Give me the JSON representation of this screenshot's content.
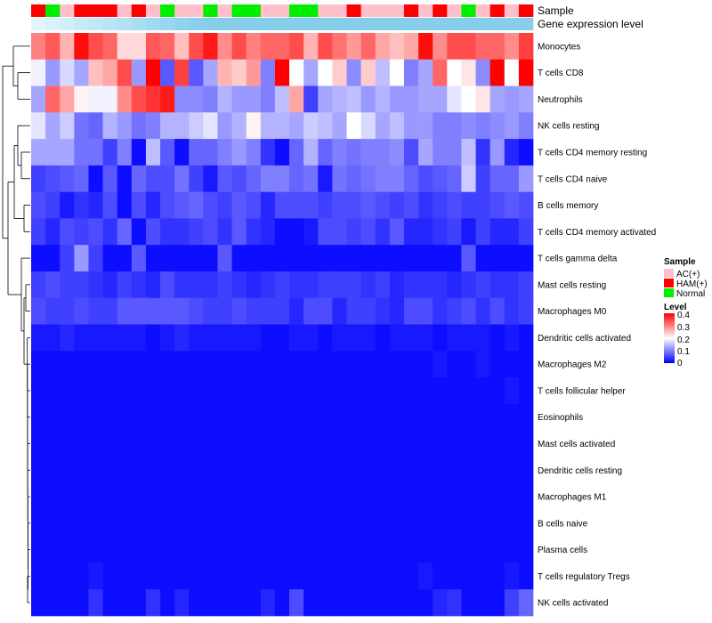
{
  "chart_data": {
    "type": "heatmap",
    "title": "",
    "annotation_tracks": [
      {
        "name": "Sample"
      },
      {
        "name": "Gene expression level"
      }
    ],
    "row_labels": [
      "Monocytes",
      "T cells CD8",
      "Neutrophils",
      "NK cells resting",
      "T cells CD4 memory resting",
      "T cells CD4 naive",
      "B cells memory",
      "T cells CD4 memory activated",
      "T cells gamma delta",
      "Mast cells resting",
      "Macrophages M0",
      "Dendritic cells activated",
      "Macrophages M2",
      "T cells follicular helper",
      "Eosinophils",
      "Mast cells activated",
      "Dendritic cells resting",
      "Macrophages M1",
      "B cells naive",
      "Plasma cells",
      "T cells regulatory  Tregs",
      "NK cells activated"
    ],
    "sample_groups": [
      "HAM(+)",
      "Normal",
      "AC(+)",
      "HAM(+)",
      "HAM(+)",
      "HAM(+)",
      "AC(+)",
      "HAM(+)",
      "AC(+)",
      "Normal",
      "AC(+)",
      "AC(+)",
      "Normal",
      "AC(+)",
      "Normal",
      "Normal",
      "AC(+)",
      "AC(+)",
      "Normal",
      "Normal",
      "AC(+)",
      "AC(+)",
      "HAM(+)",
      "AC(+)",
      "AC(+)",
      "AC(+)",
      "HAM(+)",
      "AC(+)",
      "HAM(+)",
      "AC(+)",
      "Normal",
      "AC(+)",
      "HAM(+)",
      "AC(+)",
      "HAM(+)"
    ],
    "values": [
      [
        0.3,
        0.33,
        0.26,
        0.39,
        0.34,
        0.32,
        0.23,
        0.23,
        0.33,
        0.32,
        0.25,
        0.34,
        0.38,
        0.29,
        0.34,
        0.3,
        0.32,
        0.32,
        0.34,
        0.26,
        0.34,
        0.31,
        0.28,
        0.32,
        0.27,
        0.25,
        0.27,
        0.39,
        0.29,
        0.34,
        0.34,
        0.32,
        0.32,
        0.29,
        0.35
      ],
      [
        0.19,
        0.12,
        0.17,
        0.13,
        0.25,
        0.27,
        0.34,
        0.12,
        0.4,
        0.07,
        0.35,
        0.07,
        0.13,
        0.26,
        0.24,
        0.28,
        0.1,
        0.4,
        0.2,
        0.13,
        0.2,
        0.24,
        0.11,
        0.24,
        0.15,
        0.2,
        0.1,
        0.13,
        0.32,
        0.2,
        0.22,
        0.11,
        0.4,
        0.2,
        0.4
      ],
      [
        0.13,
        0.32,
        0.27,
        0.21,
        0.19,
        0.19,
        0.29,
        0.34,
        0.36,
        0.38,
        0.11,
        0.11,
        0.1,
        0.14,
        0.12,
        0.12,
        0.1,
        0.15,
        0.27,
        0.05,
        0.13,
        0.14,
        0.15,
        0.12,
        0.14,
        0.12,
        0.12,
        0.13,
        0.13,
        0.18,
        0.2,
        0.22,
        0.13,
        0.12,
        0.13
      ],
      [
        0.18,
        0.13,
        0.16,
        0.09,
        0.08,
        0.14,
        0.12,
        0.09,
        0.1,
        0.14,
        0.14,
        0.16,
        0.18,
        0.12,
        0.14,
        0.21,
        0.14,
        0.14,
        0.13,
        0.16,
        0.15,
        0.13,
        0.2,
        0.17,
        0.13,
        0.15,
        0.12,
        0.12,
        0.1,
        0.1,
        0.11,
        0.1,
        0.11,
        0.12,
        0.1
      ],
      [
        0.13,
        0.13,
        0.13,
        0.09,
        0.09,
        0.05,
        0.1,
        0.01,
        0.15,
        0.07,
        0.01,
        0.08,
        0.08,
        0.1,
        0.12,
        0.1,
        0.04,
        0.01,
        0.08,
        0.14,
        0.08,
        0.1,
        0.09,
        0.1,
        0.1,
        0.11,
        0.06,
        0.13,
        0.1,
        0.1,
        0.15,
        0.04,
        0.12,
        0.03,
        0.01
      ],
      [
        0.05,
        0.06,
        0.07,
        0.08,
        0.01,
        0.07,
        0.01,
        0.08,
        0.06,
        0.06,
        0.09,
        0.05,
        0.02,
        0.07,
        0.06,
        0.08,
        0.1,
        0.1,
        0.08,
        0.09,
        0.02,
        0.09,
        0.08,
        0.09,
        0.1,
        0.1,
        0.08,
        0.06,
        0.07,
        0.08,
        0.16,
        0.05,
        0.08,
        0.08,
        0.12
      ],
      [
        0.06,
        0.05,
        0.02,
        0.04,
        0.03,
        0.06,
        0.01,
        0.06,
        0.03,
        0.06,
        0.07,
        0.08,
        0.06,
        0.05,
        0.07,
        0.06,
        0.03,
        0.06,
        0.06,
        0.06,
        0.05,
        0.06,
        0.06,
        0.07,
        0.06,
        0.05,
        0.06,
        0.04,
        0.05,
        0.06,
        0.05,
        0.05,
        0.06,
        0.07,
        0.06
      ],
      [
        0.05,
        0.03,
        0.06,
        0.05,
        0.06,
        0.04,
        0.08,
        0.01,
        0.06,
        0.04,
        0.04,
        0.05,
        0.06,
        0.04,
        0.07,
        0.04,
        0.03,
        0.01,
        0.01,
        0.02,
        0.06,
        0.06,
        0.05,
        0.06,
        0.04,
        0.07,
        0.03,
        0.03,
        0.04,
        0.05,
        0.02,
        0.05,
        0.03,
        0.03,
        0.05
      ],
      [
        0.01,
        0.01,
        0.05,
        0.12,
        0.05,
        0.01,
        0.01,
        0.07,
        0.01,
        0.01,
        0.01,
        0.01,
        0.01,
        0.07,
        0.01,
        0.01,
        0.01,
        0.01,
        0.01,
        0.01,
        0.01,
        0.01,
        0.01,
        0.01,
        0.01,
        0.01,
        0.01,
        0.01,
        0.01,
        0.01,
        0.07,
        0.01,
        0.01,
        0.01,
        0.01
      ],
      [
        0.05,
        0.06,
        0.05,
        0.05,
        0.04,
        0.03,
        0.05,
        0.04,
        0.03,
        0.06,
        0.04,
        0.04,
        0.04,
        0.05,
        0.04,
        0.03,
        0.04,
        0.05,
        0.04,
        0.04,
        0.05,
        0.05,
        0.05,
        0.04,
        0.05,
        0.03,
        0.04,
        0.04,
        0.04,
        0.03,
        0.04,
        0.05,
        0.04,
        0.04,
        0.05
      ],
      [
        0.06,
        0.05,
        0.05,
        0.06,
        0.05,
        0.05,
        0.07,
        0.07,
        0.07,
        0.07,
        0.07,
        0.06,
        0.05,
        0.05,
        0.06,
        0.05,
        0.05,
        0.05,
        0.03,
        0.06,
        0.06,
        0.03,
        0.05,
        0.05,
        0.04,
        0.03,
        0.06,
        0.06,
        0.04,
        0.05,
        0.06,
        0.04,
        0.06,
        0.04,
        0.05
      ],
      [
        0.02,
        0.02,
        0.03,
        0.02,
        0.02,
        0.02,
        0.02,
        0.02,
        0.01,
        0.02,
        0.03,
        0.02,
        0.02,
        0.02,
        0.02,
        0.02,
        0.01,
        0.01,
        0.02,
        0.02,
        0.01,
        0.02,
        0.02,
        0.02,
        0.01,
        0.02,
        0.02,
        0.02,
        0.01,
        0.02,
        0.02,
        0.02,
        0.01,
        0.02,
        0.01
      ],
      [
        0.01,
        0.01,
        0.01,
        0.01,
        0.01,
        0.01,
        0.01,
        0.01,
        0.01,
        0.01,
        0.01,
        0.01,
        0.01,
        0.01,
        0.01,
        0.01,
        0.01,
        0.01,
        0.01,
        0.01,
        0.01,
        0.01,
        0.01,
        0.01,
        0.01,
        0.01,
        0.01,
        0.01,
        0.02,
        0.01,
        0.01,
        0.02,
        0.01,
        0.01,
        0.01
      ],
      [
        0.01,
        0.01,
        0.01,
        0.01,
        0.01,
        0.01,
        0.01,
        0.01,
        0.01,
        0.01,
        0.01,
        0.01,
        0.01,
        0.01,
        0.01,
        0.01,
        0.01,
        0.01,
        0.01,
        0.01,
        0.01,
        0.01,
        0.01,
        0.01,
        0.01,
        0.01,
        0.01,
        0.01,
        0.01,
        0.01,
        0.01,
        0.01,
        0.01,
        0.02,
        0.01
      ],
      [
        0.01,
        0.01,
        0.01,
        0.01,
        0.01,
        0.01,
        0.01,
        0.01,
        0.01,
        0.01,
        0.01,
        0.01,
        0.01,
        0.01,
        0.01,
        0.01,
        0.01,
        0.01,
        0.01,
        0.01,
        0.01,
        0.01,
        0.01,
        0.01,
        0.01,
        0.01,
        0.01,
        0.01,
        0.01,
        0.01,
        0.01,
        0.01,
        0.01,
        0.01,
        0.01
      ],
      [
        0.01,
        0.01,
        0.01,
        0.01,
        0.01,
        0.01,
        0.01,
        0.01,
        0.01,
        0.01,
        0.01,
        0.01,
        0.01,
        0.01,
        0.01,
        0.01,
        0.01,
        0.01,
        0.01,
        0.01,
        0.01,
        0.01,
        0.01,
        0.01,
        0.01,
        0.01,
        0.01,
        0.01,
        0.01,
        0.01,
        0.01,
        0.01,
        0.01,
        0.01,
        0.01
      ],
      [
        0.01,
        0.01,
        0.01,
        0.01,
        0.01,
        0.01,
        0.01,
        0.01,
        0.01,
        0.01,
        0.01,
        0.01,
        0.01,
        0.01,
        0.01,
        0.01,
        0.01,
        0.01,
        0.01,
        0.01,
        0.01,
        0.01,
        0.01,
        0.01,
        0.01,
        0.01,
        0.01,
        0.01,
        0.01,
        0.01,
        0.01,
        0.01,
        0.01,
        0.01,
        0.01
      ],
      [
        0.01,
        0.01,
        0.01,
        0.01,
        0.01,
        0.01,
        0.01,
        0.01,
        0.01,
        0.01,
        0.01,
        0.01,
        0.01,
        0.01,
        0.01,
        0.01,
        0.01,
        0.01,
        0.01,
        0.01,
        0.01,
        0.01,
        0.01,
        0.01,
        0.01,
        0.01,
        0.01,
        0.01,
        0.01,
        0.01,
        0.01,
        0.01,
        0.01,
        0.01,
        0.01
      ],
      [
        0.01,
        0.01,
        0.01,
        0.01,
        0.01,
        0.01,
        0.01,
        0.01,
        0.01,
        0.01,
        0.01,
        0.01,
        0.01,
        0.01,
        0.01,
        0.01,
        0.01,
        0.01,
        0.01,
        0.01,
        0.01,
        0.01,
        0.01,
        0.01,
        0.01,
        0.01,
        0.01,
        0.01,
        0.01,
        0.01,
        0.01,
        0.01,
        0.01,
        0.01,
        0.01
      ],
      [
        0.01,
        0.01,
        0.01,
        0.01,
        0.01,
        0.01,
        0.01,
        0.01,
        0.01,
        0.01,
        0.01,
        0.01,
        0.01,
        0.01,
        0.01,
        0.01,
        0.01,
        0.01,
        0.01,
        0.01,
        0.01,
        0.01,
        0.01,
        0.01,
        0.01,
        0.01,
        0.01,
        0.01,
        0.01,
        0.01,
        0.01,
        0.01,
        0.01,
        0.01,
        0.01
      ],
      [
        0.01,
        0.01,
        0.01,
        0.01,
        0.02,
        0.01,
        0.01,
        0.01,
        0.01,
        0.01,
        0.01,
        0.01,
        0.01,
        0.01,
        0.01,
        0.01,
        0.01,
        0.01,
        0.01,
        0.01,
        0.01,
        0.01,
        0.01,
        0.01,
        0.01,
        0.01,
        0.01,
        0.02,
        0.01,
        0.01,
        0.01,
        0.01,
        0.01,
        0.02,
        0.01
      ],
      [
        0.01,
        0.01,
        0.01,
        0.01,
        0.04,
        0.01,
        0.01,
        0.01,
        0.04,
        0.01,
        0.03,
        0.01,
        0.01,
        0.01,
        0.01,
        0.01,
        0.03,
        0.01,
        0.06,
        0.01,
        0.01,
        0.01,
        0.01,
        0.01,
        0.01,
        0.01,
        0.01,
        0.01,
        0.03,
        0.04,
        0.01,
        0.01,
        0.01,
        0.05,
        0.08
      ]
    ],
    "color_scale": {
      "stops": [
        {
          "value": 0,
          "color": "#0000FF"
        },
        {
          "value": 0.2,
          "color": "#FFFFFF"
        },
        {
          "value": 0.4,
          "color": "#FF0000"
        }
      ],
      "domain": [
        0,
        0.4
      ]
    },
    "legend": {
      "position": "right",
      "sample_title": "Sample",
      "sample_entries": [
        {
          "label": "AC(+)",
          "color": "#FFC0CB"
        },
        {
          "label": "HAM(+)",
          "color": "#FF0000"
        },
        {
          "label": "Normal",
          "color": "#00EE00"
        }
      ],
      "level_title": "Level",
      "level_ticks": [
        "0.4",
        "0.3",
        "0.2",
        "0.1",
        "0"
      ]
    },
    "expression_track_color": "#87CEEB",
    "row_dendrogram": true
  }
}
